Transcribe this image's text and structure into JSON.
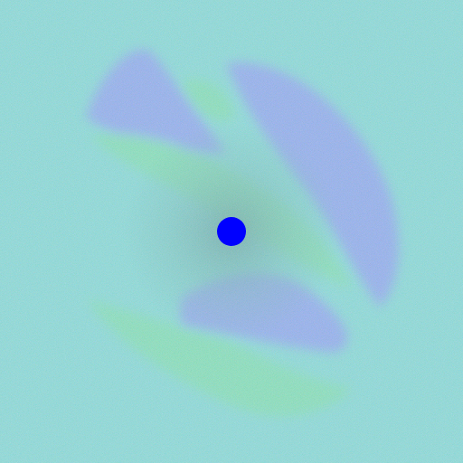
{
  "colors": {
    "background": "#5fd6c4",
    "noise_a": "#7ee0d2",
    "noise_b": "#8f8fef",
    "green_arm": "#58e08a",
    "blue_arm": "#6f7ff0",
    "center_haze": "#3f9a84",
    "center_dot": "#0000ff"
  },
  "scene": {
    "center_marker_icon": "filled-circle"
  }
}
